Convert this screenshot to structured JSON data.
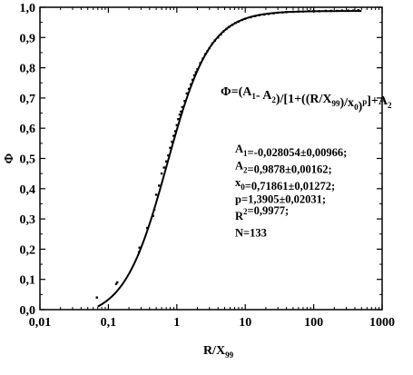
{
  "chart_data": {
    "type": "scatter",
    "title": "",
    "xlabel": "R/X",
    "xlabel_sub": "99",
    "ylabel": "Φ",
    "xscale": "log",
    "xlim": [
      0.01,
      1000
    ],
    "ylim": [
      0.0,
      1.0
    ],
    "grid": false,
    "x_ticks": [
      0.01,
      0.1,
      1,
      10,
      100,
      1000
    ],
    "x_tick_labels": [
      "0,01",
      "0,1",
      "1",
      "10",
      "100",
      "1000"
    ],
    "y_ticks": [
      0.0,
      0.1,
      0.2,
      0.3,
      0.4,
      0.5,
      0.6,
      0.7,
      0.8,
      0.9,
      1.0
    ],
    "y_tick_labels": [
      "0,0",
      "0,1",
      "0,2",
      "0,3",
      "0,4",
      "0,5",
      "0,6",
      "0,7",
      "0,8",
      "0,9",
      "1,0"
    ],
    "fit": {
      "model": "logistic",
      "A1": -0.028054,
      "A2": 0.9878,
      "x0": 0.71861,
      "p": 1.3905,
      "x_range": [
        0.07,
        500
      ]
    },
    "equation": {
      "parts": [
        {
          "t": "Φ=(A",
          "sub": false
        },
        {
          "t": "1",
          "sub": true
        },
        {
          "t": "- A",
          "sub": false
        },
        {
          "t": "2",
          "sub": true
        },
        {
          "t": ")/[1+((R/X",
          "sub": false
        },
        {
          "t": "99",
          "sub": true
        },
        {
          "t": ")/x",
          "sub": false
        },
        {
          "t": "0",
          "sub": true
        },
        {
          "t": ")",
          "sub": false
        },
        {
          "t": "p",
          "sup": true
        },
        {
          "t": "]+A",
          "sub": false
        },
        {
          "t": "2",
          "sub": true
        }
      ]
    },
    "parameters": [
      [
        {
          "t": "A"
        },
        {
          "t": "1",
          "sub": true
        },
        {
          "t": "=-0,028054±0,00966;"
        }
      ],
      [
        {
          "t": "A"
        },
        {
          "t": "2",
          "sub": true
        },
        {
          "t": "=0,9878±0,00162;"
        }
      ],
      [
        {
          "t": "x"
        },
        {
          "t": "0",
          "sub": true
        },
        {
          "t": "=0,71861±0,01272;"
        }
      ],
      [
        {
          "t": "p=1,3905±0,02031;"
        }
      ],
      [
        {
          "t": "R"
        },
        {
          "t": "2",
          "sup": true
        },
        {
          "t": "=0,9977;"
        }
      ],
      [
        {
          "t": "N=133"
        }
      ]
    ],
    "points": [
      {
        "x": 0.068,
        "y": 0.04
      },
      {
        "x": 0.13,
        "y": 0.085
      },
      {
        "x": 0.135,
        "y": 0.09
      },
      {
        "x": 0.28,
        "y": 0.19
      },
      {
        "x": 0.285,
        "y": 0.205
      },
      {
        "x": 0.37,
        "y": 0.27
      },
      {
        "x": 0.45,
        "y": 0.31
      },
      {
        "x": 0.47,
        "y": 0.33
      },
      {
        "x": 0.5,
        "y": 0.38
      },
      {
        "x": 0.55,
        "y": 0.41
      },
      {
        "x": 0.6,
        "y": 0.45
      },
      {
        "x": 0.65,
        "y": 0.47
      },
      {
        "x": 0.7,
        "y": 0.49
      },
      {
        "x": 0.75,
        "y": 0.51
      },
      {
        "x": 0.8,
        "y": 0.535
      },
      {
        "x": 0.85,
        "y": 0.555
      },
      {
        "x": 0.9,
        "y": 0.575
      },
      {
        "x": 0.95,
        "y": 0.59
      },
      {
        "x": 1.0,
        "y": 0.61
      },
      {
        "x": 1.05,
        "y": 0.63
      },
      {
        "x": 1.1,
        "y": 0.645
      },
      {
        "x": 1.15,
        "y": 0.655
      },
      {
        "x": 1.2,
        "y": 0.67
      },
      {
        "x": 1.3,
        "y": 0.69
      },
      {
        "x": 1.4,
        "y": 0.715
      },
      {
        "x": 1.5,
        "y": 0.73
      },
      {
        "x": 1.6,
        "y": 0.745
      },
      {
        "x": 1.7,
        "y": 0.76
      },
      {
        "x": 1.8,
        "y": 0.775
      },
      {
        "x": 1.9,
        "y": 0.785
      },
      {
        "x": 2.0,
        "y": 0.795
      },
      {
        "x": 2.2,
        "y": 0.815
      },
      {
        "x": 2.4,
        "y": 0.83
      },
      {
        "x": 2.6,
        "y": 0.845
      },
      {
        "x": 2.8,
        "y": 0.855
      },
      {
        "x": 3.0,
        "y": 0.865
      },
      {
        "x": 3.3,
        "y": 0.88
      },
      {
        "x": 3.6,
        "y": 0.89
      },
      {
        "x": 4.0,
        "y": 0.9
      },
      {
        "x": 4.4,
        "y": 0.91
      },
      {
        "x": 4.8,
        "y": 0.92
      },
      {
        "x": 5.3,
        "y": 0.928
      },
      {
        "x": 5.8,
        "y": 0.935
      },
      {
        "x": 6.5,
        "y": 0.942
      },
      {
        "x": 7.2,
        "y": 0.948
      },
      {
        "x": 8.0,
        "y": 0.953
      },
      {
        "x": 9.0,
        "y": 0.958
      },
      {
        "x": 10,
        "y": 0.962
      },
      {
        "x": 12,
        "y": 0.967
      },
      {
        "x": 14,
        "y": 0.971
      },
      {
        "x": 16,
        "y": 0.974
      },
      {
        "x": 19,
        "y": 0.976
      },
      {
        "x": 22,
        "y": 0.978
      },
      {
        "x": 26,
        "y": 0.98
      },
      {
        "x": 30,
        "y": 0.982
      },
      {
        "x": 35,
        "y": 0.983
      },
      {
        "x": 40,
        "y": 0.984
      },
      {
        "x": 50,
        "y": 0.985
      },
      {
        "x": 60,
        "y": 0.986
      },
      {
        "x": 70,
        "y": 0.986
      },
      {
        "x": 85,
        "y": 0.987
      },
      {
        "x": 100,
        "y": 0.987
      },
      {
        "x": 120,
        "y": 0.987
      },
      {
        "x": 150,
        "y": 0.988
      },
      {
        "x": 180,
        "y": 0.988
      },
      {
        "x": 220,
        "y": 0.988
      },
      {
        "x": 260,
        "y": 0.989
      },
      {
        "x": 320,
        "y": 0.989
      },
      {
        "x": 380,
        "y": 0.989
      },
      {
        "x": 450,
        "y": 0.99
      }
    ]
  }
}
